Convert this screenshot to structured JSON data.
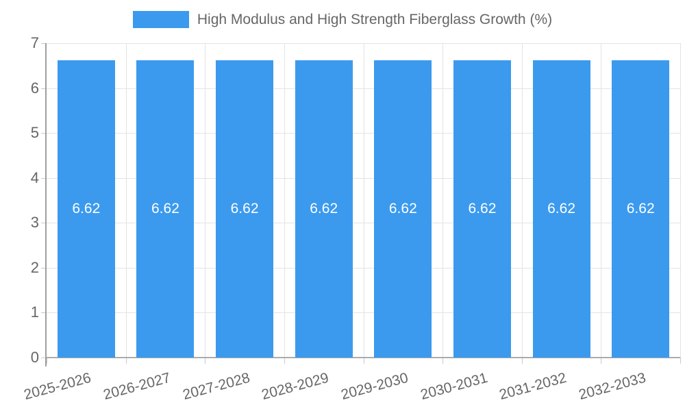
{
  "chart_data": {
    "type": "bar",
    "title": "High Modulus and High Strength Fiberglass Growth (%)",
    "categories": [
      "2025-2026",
      "2026-2027",
      "2027-2028",
      "2028-2029",
      "2029-2030",
      "2030-2031",
      "2031-2032",
      "2032-2033"
    ],
    "series": [
      {
        "name": "High Modulus and High Strength Fiberglass Growth (%)",
        "values": [
          6.62,
          6.62,
          6.62,
          6.62,
          6.62,
          6.62,
          6.62,
          6.62
        ],
        "value_labels": [
          "6.62",
          "6.62",
          "6.62",
          "6.62",
          "6.62",
          "6.62",
          "6.62",
          "6.62"
        ]
      }
    ],
    "xlabel": "",
    "ylabel": "",
    "ylim": [
      0,
      7
    ],
    "yticks": [
      0,
      1,
      2,
      3,
      4,
      5,
      6,
      7
    ],
    "grid": true,
    "legend_position": "top",
    "colors": {
      "bar": "#3B9AEE",
      "grid": "#E3E3E3",
      "axis": "#9E9E9E",
      "baseline": "#ABABAB",
      "tick": "#C9C9C9",
      "axis_label": "#666666",
      "value_label": "#FFFFFF",
      "background": "#FFFFFF"
    }
  }
}
